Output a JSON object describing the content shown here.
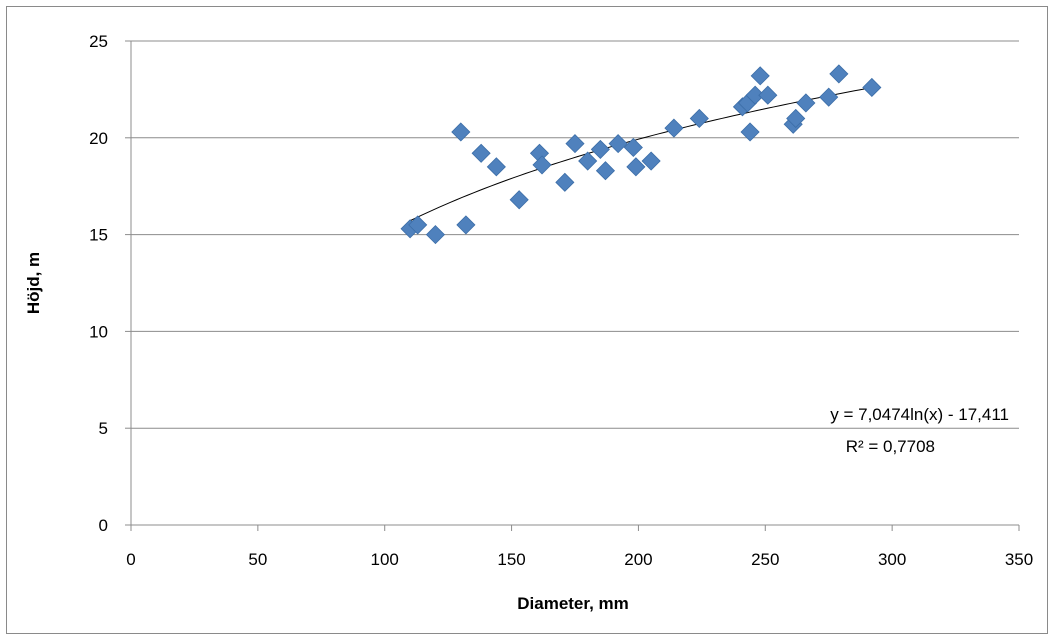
{
  "chart_data": {
    "type": "scatter",
    "xlabel": "Diameter, mm",
    "ylabel": "Höjd, m",
    "xlim": [
      0,
      350
    ],
    "ylim": [
      0,
      25
    ],
    "x_ticks": [
      0,
      50,
      100,
      150,
      200,
      250,
      300,
      350
    ],
    "y_ticks": [
      0,
      5,
      10,
      15,
      20,
      25
    ],
    "grid": "horizontal",
    "legend": "none",
    "series": [
      {
        "marker": "diamond",
        "color": "#4f81bd",
        "points": [
          [
            110,
            15.3
          ],
          [
            113,
            15.5
          ],
          [
            120,
            15.0
          ],
          [
            130,
            20.3
          ],
          [
            132,
            15.5
          ],
          [
            138,
            19.2
          ],
          [
            144,
            18.5
          ],
          [
            153,
            16.8
          ],
          [
            161,
            19.2
          ],
          [
            162,
            18.6
          ],
          [
            171,
            17.7
          ],
          [
            175,
            19.7
          ],
          [
            180,
            18.8
          ],
          [
            185,
            19.4
          ],
          [
            187,
            18.3
          ],
          [
            192,
            19.7
          ],
          [
            198,
            19.5
          ],
          [
            199,
            18.5
          ],
          [
            205,
            18.8
          ],
          [
            214,
            20.5
          ],
          [
            224,
            21.0
          ],
          [
            241,
            21.6
          ],
          [
            243,
            21.8
          ],
          [
            244,
            20.3
          ],
          [
            246,
            22.2
          ],
          [
            248,
            23.2
          ],
          [
            251,
            22.2
          ],
          [
            261,
            20.7
          ],
          [
            262,
            21.0
          ],
          [
            266,
            21.8
          ],
          [
            275,
            22.1
          ],
          [
            279,
            23.3
          ],
          [
            292,
            22.6
          ]
        ]
      }
    ],
    "trendline": {
      "type": "log",
      "a": 7.0474,
      "b": -17.411,
      "x_range": [
        110,
        292
      ],
      "color": "#000000",
      "equation": "y = 7,0474ln(x) - 17,411",
      "r2": "R² = 0,7708"
    }
  }
}
